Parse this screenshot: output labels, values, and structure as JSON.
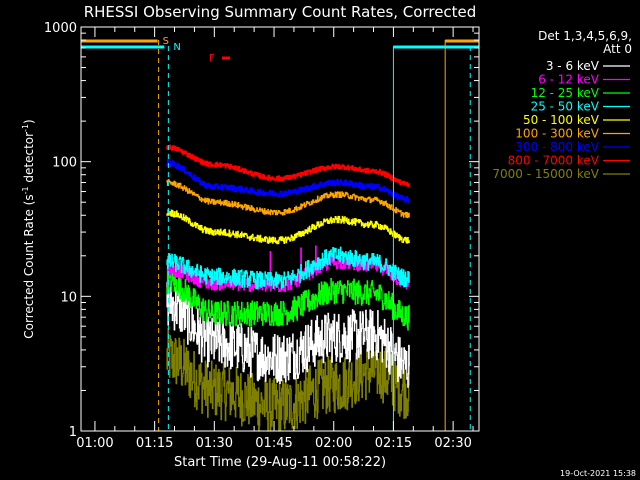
{
  "chart_data": {
    "type": "line",
    "title": "RHESSI Observing Summary Count Rates, Corrected",
    "xlabel": "Start Time (29-Aug-11 00:58:22)",
    "ylabel": "Corrected Count Rate (s",
    "ylabel_sup1": "-1",
    "ylabel_mid": " detector",
    "ylabel_sup2": "-1",
    "ylabel_end": ")",
    "y_scale": "log",
    "ylim": [
      1,
      1000
    ],
    "xlim_minutes": [
      -3.5,
      96.5
    ],
    "x_ticks": [
      {
        "t": 0,
        "label": "01:00"
      },
      {
        "t": 15,
        "label": "01:15"
      },
      {
        "t": 30,
        "label": "01:30"
      },
      {
        "t": 45,
        "label": "01:45"
      },
      {
        "t": 60,
        "label": "02:00"
      },
      {
        "t": 75,
        "label": "02:15"
      },
      {
        "t": 90,
        "label": "02:30"
      }
    ],
    "y_ticks": [
      {
        "v": 1,
        "label": "1"
      },
      {
        "v": 10,
        "label": "10"
      },
      {
        "v": 100,
        "label": "100"
      },
      {
        "v": 1000,
        "label": "1000"
      }
    ],
    "legend_header": [
      "Det 1,3,4,5,6,9,",
      "Att 0"
    ],
    "legend_position": "right",
    "series": [
      {
        "name": "3 - 6 keV",
        "color": "#ffffff",
        "keypoints": [
          [
            18,
            9
          ],
          [
            30,
            4.5
          ],
          [
            46,
            3.5
          ],
          [
            60,
            5
          ],
          [
            70,
            5.2
          ],
          [
            79,
            3
          ]
        ],
        "noise": 0.45,
        "spikes": 0
      },
      {
        "name": "6 - 12 keV",
        "color": "#ff00ff",
        "keypoints": [
          [
            18,
            16
          ],
          [
            30,
            12.5
          ],
          [
            46,
            12
          ],
          [
            61,
            18
          ],
          [
            70,
            17
          ],
          [
            79,
            12.5
          ]
        ],
        "noise": 0.12,
        "spikes": 1
      },
      {
        "name": "12 - 25 keV",
        "color": "#00ff00",
        "keypoints": [
          [
            18,
            13
          ],
          [
            30,
            7.5
          ],
          [
            46,
            7.5
          ],
          [
            61,
            11
          ],
          [
            70,
            10.5
          ],
          [
            79,
            7
          ]
        ],
        "noise": 0.22,
        "spikes": 0
      },
      {
        "name": "25 - 50 keV",
        "color": "#00ffff",
        "keypoints": [
          [
            18,
            18
          ],
          [
            30,
            14
          ],
          [
            46,
            13
          ],
          [
            61,
            20
          ],
          [
            70,
            18
          ],
          [
            79,
            13.5
          ]
        ],
        "noise": 0.15,
        "spikes": 0
      },
      {
        "name": "50 - 100 keV",
        "color": "#ffff00",
        "keypoints": [
          [
            18,
            42
          ],
          [
            30,
            30
          ],
          [
            46,
            26
          ],
          [
            61,
            37
          ],
          [
            70,
            34
          ],
          [
            79,
            26
          ]
        ],
        "noise": 0.06,
        "spikes": 0
      },
      {
        "name": "100 - 300 keV",
        "color": "#ffa500",
        "keypoints": [
          [
            18,
            70
          ],
          [
            30,
            50
          ],
          [
            46,
            42
          ],
          [
            61,
            57
          ],
          [
            70,
            52
          ],
          [
            79,
            40
          ]
        ],
        "noise": 0.05,
        "spikes": 0
      },
      {
        "name": "300 - 800 keV",
        "color": "#0000ff",
        "keypoints": [
          [
            18,
            98
          ],
          [
            30,
            65
          ],
          [
            46,
            58
          ],
          [
            61,
            70
          ],
          [
            70,
            65
          ],
          [
            79,
            52
          ]
        ],
        "noise": 0.05,
        "spikes": 0
      },
      {
        "name": "800 - 7000 keV",
        "color": "#ff0000",
        "keypoints": [
          [
            18,
            128
          ],
          [
            30,
            95
          ],
          [
            46,
            75
          ],
          [
            61,
            92
          ],
          [
            70,
            85
          ],
          [
            79,
            68
          ]
        ],
        "noise": 0.04,
        "spikes": 0
      },
      {
        "name": "7000 - 15000 keV",
        "color": "#808000",
        "keypoints": [
          [
            18,
            3.5
          ],
          [
            30,
            2
          ],
          [
            46,
            1.5
          ],
          [
            60,
            2.2
          ],
          [
            70,
            2.8
          ],
          [
            79,
            2
          ]
        ],
        "noise": 0.5,
        "spikes": 0
      }
    ],
    "annotations": {
      "s_label": "S",
      "n_label": "N",
      "f_label": "F",
      "s_color": "#ffa500",
      "n_color": "#00ffff",
      "f_color": "#ff0000"
    }
  },
  "footer": {
    "timestamp": "19-Oct-2021 15:38"
  }
}
